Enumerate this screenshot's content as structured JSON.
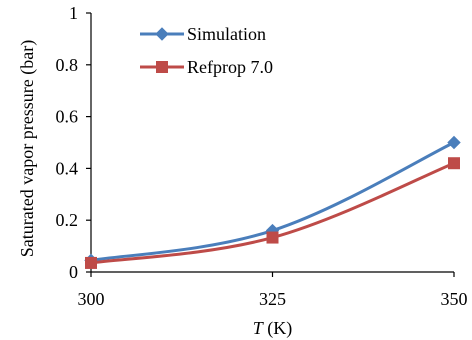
{
  "chart_data": {
    "type": "line",
    "title": "",
    "xlabel_italic": "T",
    "xlabel_unit": " (K)",
    "ylabel": "Saturated vapor pressure (bar)",
    "xlim": [
      300,
      350
    ],
    "ylim": [
      0,
      1
    ],
    "xticks": [
      300,
      325,
      350
    ],
    "yticks": [
      0,
      0.2,
      0.4,
      0.6,
      0.8,
      1
    ],
    "ytick_labels": [
      "0",
      "0.2",
      "0.4",
      "0.6",
      "0.8",
      "1"
    ],
    "grid": false,
    "legend_position": "top-left",
    "series": [
      {
        "name": "Simulation",
        "color": "#4A7EBB",
        "marker": "diamond",
        "x": [
          300,
          325,
          350
        ],
        "y": [
          0.045,
          0.16,
          0.5
        ]
      },
      {
        "name": "Refprop 7.0",
        "color": "#BE4B48",
        "marker": "square",
        "x": [
          300,
          325,
          350
        ],
        "y": [
          0.035,
          0.133,
          0.42
        ]
      }
    ]
  }
}
